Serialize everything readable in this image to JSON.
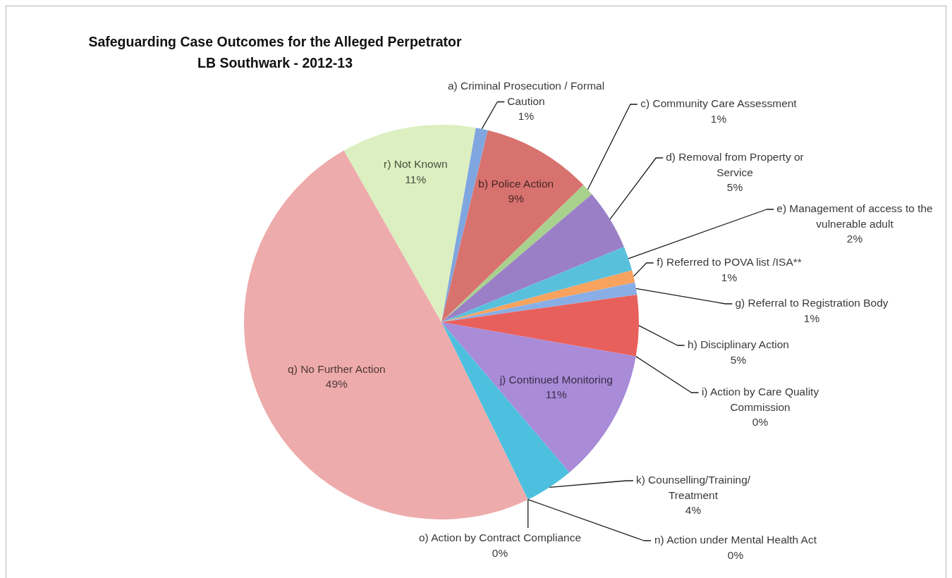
{
  "chart_data": {
    "type": "pie",
    "title": "Safeguarding Case Outcomes for the Alleged Perpetrator",
    "subtitle": "LB Southwark - 2012-13",
    "categories": [
      "a) Criminal Prosecution / Formal Caution",
      "b) Police Action",
      "c) Community Care Assessment",
      "d) Removal from Property or Service",
      "e) Management of access to the vulnerable adult",
      "f) Referred to POVA list /ISA**",
      "g) Referral to Registration Body",
      "h) Disciplinary Action",
      "i) Action by Care Quality Commission",
      "j) Continued Monitoring",
      "k) Counselling/Training/Treatment",
      "n) Action under Mental Health Act",
      "o) Action by Contract Compliance",
      "q) No Further Action",
      "r) Not Known"
    ],
    "values": [
      1,
      9,
      1,
      5,
      2,
      1,
      1,
      5,
      0,
      11,
      4,
      0,
      0,
      49,
      11
    ],
    "value_labels": [
      "1%",
      "9%",
      "1%",
      "5%",
      "2%",
      "1%",
      "1%",
      "5%",
      "0%",
      "11%",
      "4%",
      "0%",
      "0%",
      "49%",
      "11%"
    ],
    "colors": [
      "#7fa6df",
      "#d8726f",
      "#a9d18e",
      "#9a7fc6",
      "#59c0dc",
      "#f7a25e",
      "#89aee5",
      "#e8605c",
      "#a9d18e",
      "#a98bd8",
      "#4dc0df",
      "#f7a25e",
      "#aab8e2",
      "#eeabab",
      "#dcefc0"
    ]
  }
}
